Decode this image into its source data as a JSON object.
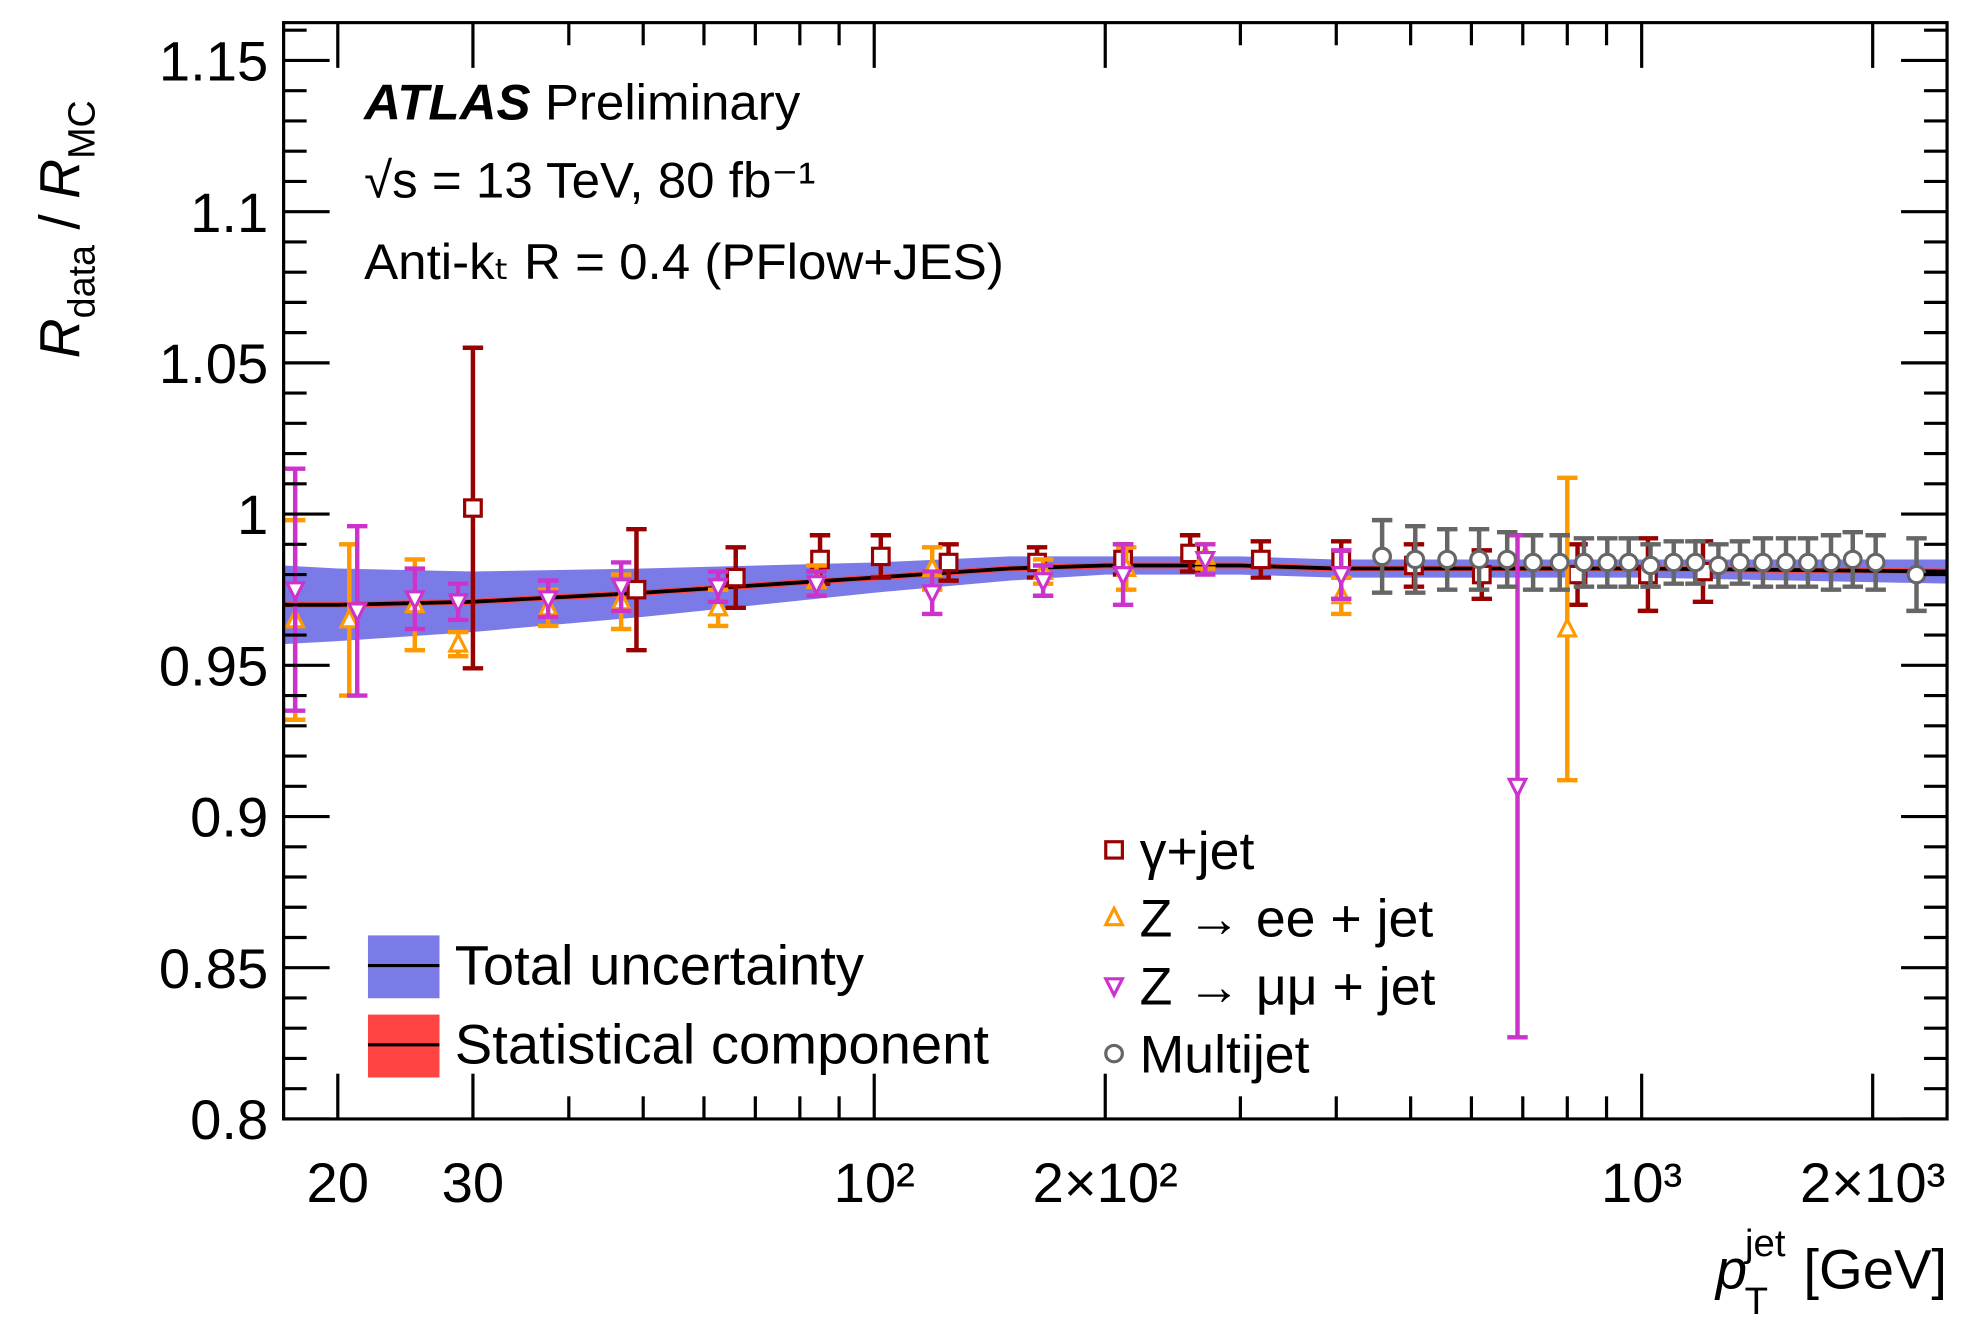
{
  "chart_data": {
    "type": "scatter",
    "xlog": true,
    "xlim": [
      17,
      2500
    ],
    "ylim": [
      0.8,
      1.1625
    ],
    "xticks": [
      {
        "value": 20,
        "label": "20"
      },
      {
        "value": 30,
        "label": "30"
      },
      {
        "value": 100,
        "label": "10²"
      },
      {
        "value": 200,
        "label": "2×10²"
      },
      {
        "value": 1000,
        "label": "10³"
      },
      {
        "value": 2000,
        "label": "2×10³"
      }
    ],
    "xminorticks": [
      40,
      50,
      60,
      70,
      80,
      90,
      300,
      400,
      500,
      600,
      700,
      800,
      900
    ],
    "yticks": [
      0.8,
      0.85,
      0.9,
      0.95,
      1,
      1.05,
      1.1,
      1.15
    ],
    "yminorticks": [
      0.81,
      0.82,
      0.83,
      0.84,
      0.86,
      0.87,
      0.88,
      0.89,
      0.91,
      0.92,
      0.93,
      0.94,
      0.96,
      0.97,
      0.98,
      0.99,
      1.01,
      1.02,
      1.03,
      1.04,
      1.06,
      1.07,
      1.08,
      1.09,
      1.11,
      1.12,
      1.13,
      1.14,
      1.16
    ],
    "ylabel": {
      "symbol": "R",
      "sub": "data",
      "slash": " / ",
      "symbol2": "R",
      "sub2": "MC"
    },
    "xlabel": {
      "symbol": "p",
      "sub": "T",
      "sup": "jet",
      "unit": "[GeV]"
    },
    "annotations": {
      "experiment": "ATLAS",
      "status": "Preliminary",
      "energy": "√s = 13 TeV, 80 fb⁻¹",
      "algorithm": "Anti-kₜ R = 0.4 (PFlow+JES)"
    },
    "bands": [
      {
        "name": "Total uncertainty",
        "color": "#7b7be8",
        "line_color": "#000000",
        "x": [
          17,
          20,
          30,
          50,
          100,
          150,
          200,
          300,
          400,
          600,
          1000,
          2500
        ],
        "values": [
          0.97,
          0.97,
          0.971,
          0.974,
          0.979,
          0.982,
          0.983,
          0.983,
          0.982,
          0.982,
          0.982,
          0.981
        ],
        "errors": [
          0.013,
          0.012,
          0.01,
          0.008,
          0.005,
          0.004,
          0.003,
          0.003,
          0.003,
          0.003,
          0.003,
          0.004
        ]
      },
      {
        "name": "Statistical component",
        "color": "#ff4444",
        "line_color": "#000000",
        "x": [
          17,
          20,
          30,
          50,
          100,
          150,
          200,
          300,
          400,
          600,
          1000,
          2500
        ],
        "values": [
          0.97,
          0.97,
          0.971,
          0.974,
          0.979,
          0.982,
          0.983,
          0.983,
          0.982,
          0.982,
          0.982,
          0.981
        ],
        "errors": [
          0.001,
          0.001,
          0.001,
          0.001,
          0.001,
          0.001,
          0.001,
          0.001,
          0.001,
          0.001,
          0.001,
          0.001
        ]
      }
    ],
    "series": [
      {
        "name": "γ+jet",
        "color": "#990000",
        "marker": "square",
        "x": [
          30,
          49,
          66,
          85,
          102,
          125,
          163,
          211,
          258,
          319,
          406,
          505,
          619,
          825,
          1019,
          1202
        ],
        "values": [
          1.002,
          0.975,
          0.979,
          0.985,
          0.986,
          0.984,
          0.984,
          0.985,
          0.987,
          0.985,
          0.985,
          0.983,
          0.98,
          0.98,
          0.98,
          0.981
        ],
        "errors": [
          0.053,
          0.02,
          0.01,
          0.008,
          0.007,
          0.006,
          0.005,
          0.005,
          0.006,
          0.006,
          0.006,
          0.007,
          0.008,
          0.01,
          0.012,
          0.01
        ]
      },
      {
        "name": "Z → ee + jet",
        "color": "#ff9900",
        "marker": "triangle-up",
        "x": [
          17.6,
          20.7,
          25.2,
          28.7,
          37.6,
          46.8,
          62.6,
          84.1,
          119,
          166,
          213,
          270,
          406,
          800
        ],
        "values": [
          0.965,
          0.965,
          0.97,
          0.957,
          0.969,
          0.971,
          0.969,
          0.978,
          0.982,
          0.981,
          0.982,
          0.986,
          0.973,
          0.962
        ],
        "errors": [
          0.033,
          0.025,
          0.015,
          0.004,
          0.006,
          0.009,
          0.006,
          0.005,
          0.007,
          0.004,
          0.007,
          0.004,
          0.006,
          0.05
        ]
      },
      {
        "name": "Z → μμ + jet",
        "color": "#cc33cc",
        "marker": "triangle-down",
        "x": [
          17.6,
          21.2,
          25.2,
          28.7,
          37.6,
          46.8,
          62.6,
          84.1,
          119,
          166,
          211,
          270,
          406,
          689
        ],
        "values": [
          0.975,
          0.968,
          0.972,
          0.971,
          0.972,
          0.976,
          0.976,
          0.977,
          0.974,
          0.978,
          0.98,
          0.985,
          0.98,
          0.91
        ],
        "errors": [
          0.04,
          0.028,
          0.01,
          0.006,
          0.006,
          0.008,
          0.005,
          0.004,
          0.007,
          0.005,
          0.01,
          0.005,
          0.008,
          0.083
        ]
      },
      {
        "name": "Multijet",
        "color": "#666666",
        "marker": "circle",
        "x": [
          459,
          507,
          558,
          614,
          668,
          722,
          782,
          841,
          902,
          962,
          1027,
          1101,
          1175,
          1259,
          1343,
          1439,
          1542,
          1647,
          1765,
          1884,
          2018,
          2281
        ],
        "values": [
          0.986,
          0.985,
          0.985,
          0.985,
          0.985,
          0.984,
          0.984,
          0.984,
          0.984,
          0.984,
          0.983,
          0.984,
          0.984,
          0.983,
          0.984,
          0.984,
          0.984,
          0.984,
          0.984,
          0.985,
          0.984,
          0.98
        ],
        "errors": [
          0.012,
          0.011,
          0.01,
          0.01,
          0.009,
          0.009,
          0.009,
          0.008,
          0.008,
          0.008,
          0.007,
          0.007,
          0.007,
          0.007,
          0.007,
          0.008,
          0.008,
          0.008,
          0.009,
          0.009,
          0.009,
          0.012
        ]
      }
    ]
  }
}
